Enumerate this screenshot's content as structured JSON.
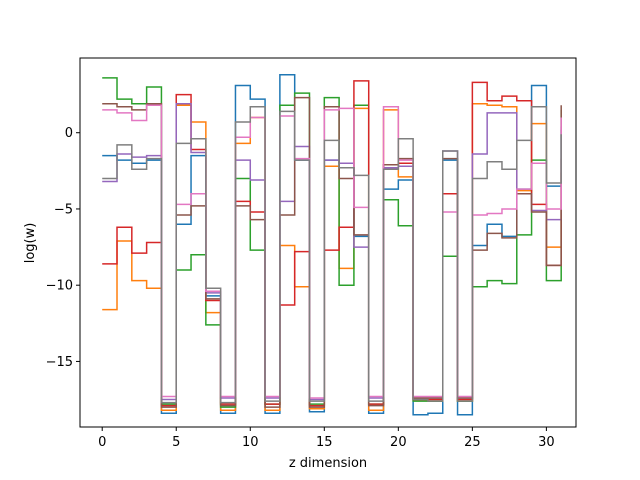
{
  "chart_data": {
    "type": "line",
    "drawstyle": "steps-post",
    "xlabel": "z dimension",
    "ylabel": "log(w)",
    "xlim": [
      -1.5,
      32.0
    ],
    "ylim": [
      -19.3,
      4.9
    ],
    "xticks": [
      0,
      5,
      10,
      15,
      20,
      25,
      30
    ],
    "yticks": [
      0,
      -5,
      -10,
      -15
    ],
    "ytick_labels": [
      "0",
      "−5",
      "−10",
      "−15"
    ],
    "grid": false,
    "x": [
      0,
      1,
      2,
      3,
      4,
      5,
      6,
      7,
      8,
      9,
      10,
      11,
      12,
      13,
      14,
      15,
      16,
      17,
      18,
      19,
      20,
      21,
      22,
      23,
      24,
      25,
      26,
      27,
      28,
      29,
      30,
      31
    ],
    "series": [
      {
        "color": "#1f77b4",
        "values": [
          -1.5,
          -1.8,
          -2.0,
          -1.8,
          -18.4,
          -6.0,
          -1.5,
          -10.7,
          -18.4,
          3.1,
          2.2,
          -18.4,
          3.8,
          -1.8,
          -18.3,
          -1.8,
          -2.3,
          -6.8,
          -18.4,
          -3.7,
          -3.1,
          -18.5,
          -18.4,
          -1.8,
          -18.5,
          -7.4,
          -6.0,
          -6.8,
          -3.7,
          3.1,
          -3.5,
          0.2
        ]
      },
      {
        "color": "#ff7f0e",
        "values": [
          -11.6,
          -7.1,
          -9.7,
          -10.2,
          -18.2,
          1.8,
          0.7,
          -11.8,
          -18.2,
          -0.7,
          1.0,
          -18.2,
          -7.4,
          -10.1,
          -18.1,
          -2.2,
          -8.9,
          1.6,
          -18.2,
          1.5,
          -2.9,
          -17.5,
          -17.6,
          -4.0,
          -17.6,
          1.9,
          1.8,
          1.7,
          -3.8,
          0.6,
          -7.5,
          -2.6
        ]
      },
      {
        "color": "#2ca02c",
        "values": [
          3.6,
          2.2,
          1.9,
          3.0,
          -17.8,
          -9.0,
          -8.0,
          -12.6,
          -18.0,
          -3.0,
          -7.7,
          -17.8,
          1.8,
          2.6,
          -17.8,
          2.3,
          -10.0,
          1.8,
          -17.8,
          -4.4,
          -6.1,
          -17.6,
          -17.6,
          -8.1,
          -17.6,
          -10.1,
          -9.7,
          -9.9,
          -6.7,
          -1.8,
          -9.7,
          1.5
        ]
      },
      {
        "color": "#d62728",
        "values": [
          -8.6,
          -6.2,
          -7.9,
          -7.2,
          -17.9,
          2.5,
          -1.1,
          -11.0,
          -17.8,
          -4.5,
          -5.2,
          -17.8,
          -11.3,
          -7.8,
          -17.9,
          -7.7,
          -6.2,
          3.4,
          -17.8,
          -2.1,
          -2.0,
          -17.5,
          -17.5,
          -4.0,
          -17.5,
          3.3,
          2.1,
          2.4,
          2.1,
          -4.7,
          -8.7,
          -1.7
        ]
      },
      {
        "color": "#9467bd",
        "values": [
          -3.2,
          -1.4,
          -1.6,
          -1.5,
          -17.5,
          1.9,
          -1.3,
          -10.5,
          -17.4,
          -1.8,
          -3.1,
          -17.4,
          -4.5,
          -0.9,
          -17.5,
          -1.8,
          -2.0,
          -7.5,
          -17.4,
          -2.3,
          -2.2,
          -17.4,
          -17.4,
          -1.2,
          -17.4,
          -1.4,
          1.3,
          1.3,
          -4.0,
          -5.1,
          -5.7,
          0.4
        ]
      },
      {
        "color": "#8c564b",
        "values": [
          1.9,
          1.7,
          1.5,
          1.9,
          -18.0,
          -5.4,
          -4.8,
          -10.9,
          -17.9,
          -4.8,
          -5.7,
          -18.0,
          -5.4,
          2.3,
          -18.0,
          1.7,
          -3.0,
          -6.7,
          -17.9,
          -2.1,
          -1.7,
          -17.4,
          -17.4,
          -1.7,
          -17.4,
          -7.7,
          -6.6,
          -6.9,
          -4.0,
          -5.2,
          -8.7,
          1.8
        ]
      },
      {
        "color": "#e377c2",
        "values": [
          1.5,
          1.3,
          0.8,
          1.8,
          -17.3,
          -4.7,
          -4.0,
          -10.4,
          -17.3,
          -0.3,
          1.0,
          -17.3,
          1.1,
          -1.7,
          -17.4,
          1.5,
          1.6,
          -4.9,
          -17.3,
          1.7,
          -1.8,
          -17.3,
          -17.3,
          -5.2,
          -17.3,
          -5.4,
          -5.3,
          -5.0,
          -3.7,
          -2.0,
          -5.0,
          1.0
        ]
      },
      {
        "color": "#7f7f7f",
        "values": [
          -3.0,
          -0.8,
          -2.4,
          -1.7,
          -17.7,
          -0.7,
          -0.4,
          -10.2,
          -17.7,
          0.7,
          1.7,
          -17.6,
          1.4,
          -1.8,
          -17.6,
          -0.5,
          -2.3,
          -2.8,
          -17.6,
          -2.4,
          -0.4,
          -17.5,
          -17.6,
          -1.2,
          -17.6,
          -3.0,
          -1.9,
          -2.4,
          -0.5,
          1.7,
          -3.3,
          -0.1
        ]
      }
    ]
  }
}
